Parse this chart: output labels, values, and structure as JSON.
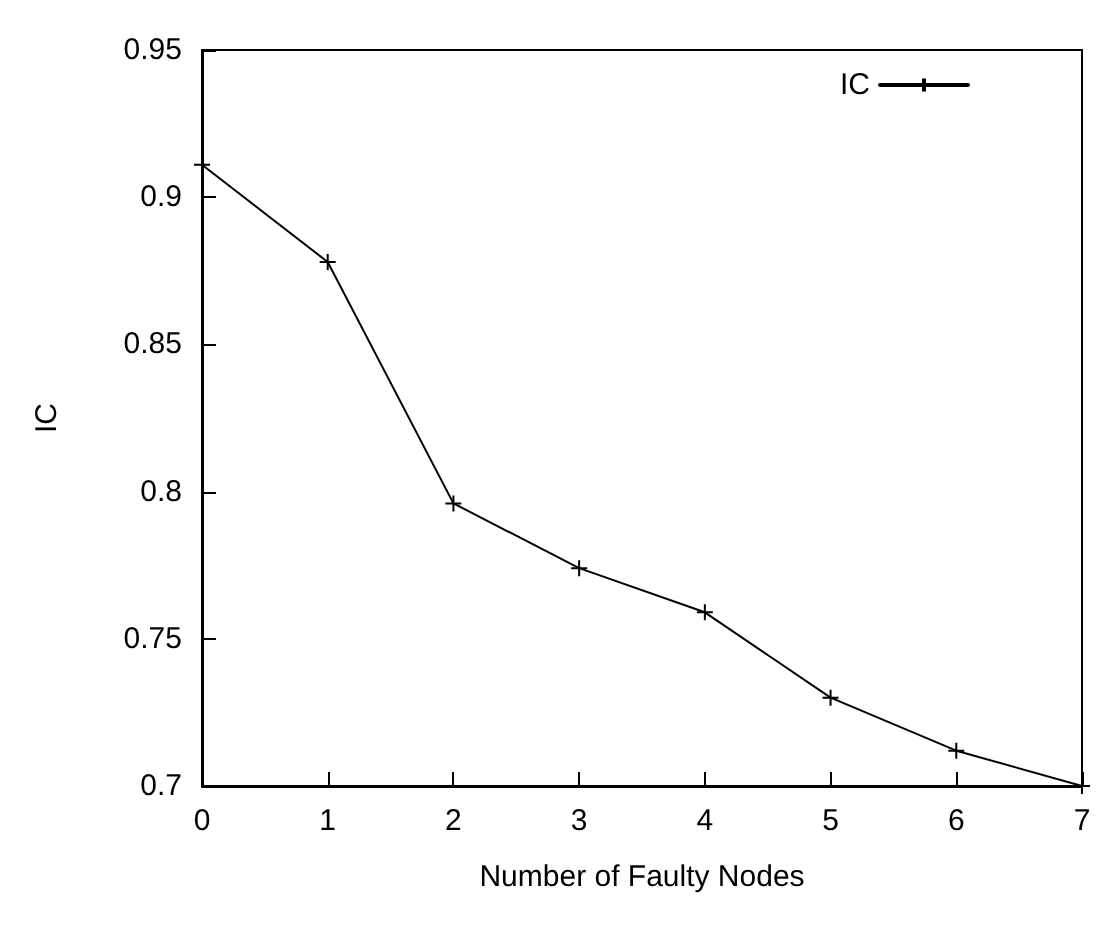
{
  "chart_data": {
    "type": "line",
    "xlabel": "Number of Faulty Nodes",
    "ylabel": "IC",
    "x": [
      0,
      1,
      2,
      3,
      4,
      5,
      6,
      7
    ],
    "series": [
      {
        "name": "IC",
        "color": "#000000",
        "values": [
          0.911,
          0.878,
          0.796,
          0.774,
          0.759,
          0.73,
          0.712,
          0.7
        ]
      }
    ],
    "xlim": [
      0,
      7
    ],
    "xticks": [
      0,
      1,
      2,
      3,
      4,
      5,
      6,
      7
    ],
    "ylim": [
      0.7,
      0.95
    ],
    "yticks": [
      0.7,
      0.75,
      0.8,
      0.85,
      0.9,
      0.95
    ],
    "grid": false,
    "legend": "top right",
    "marker": "cross",
    "line_style": "solid"
  }
}
